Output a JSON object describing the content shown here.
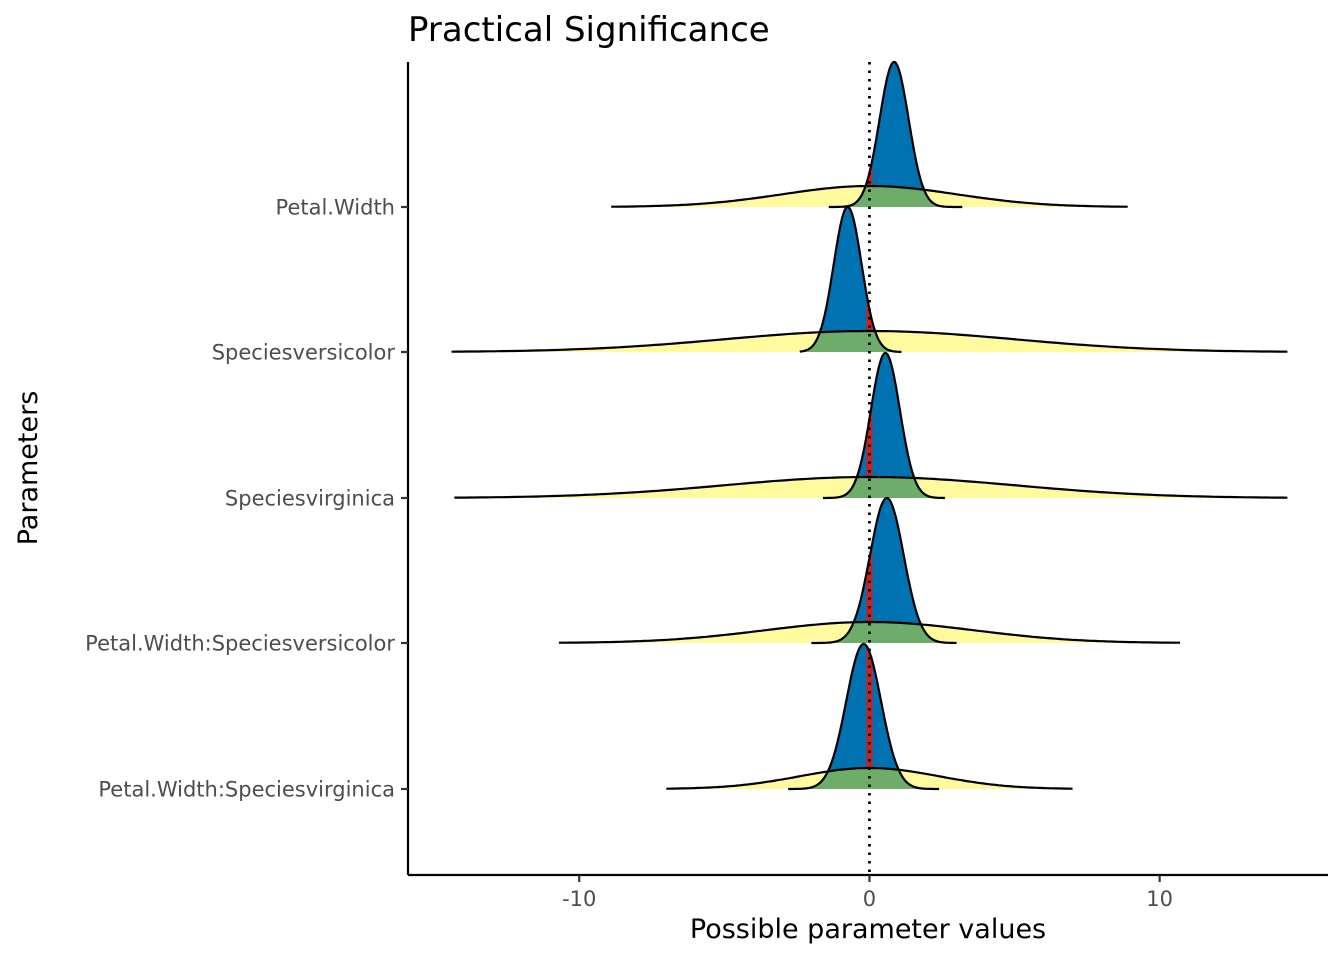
{
  "chart_data": {
    "type": "density-ridges",
    "title": "Practical Significance",
    "xlabel": "Possible parameter values",
    "ylabel": "Parameters",
    "xlim": [
      -15.9,
      15.8
    ],
    "x_ticks": [
      -10,
      0,
      10
    ],
    "x_tick_labels": [
      "-10",
      "0",
      "10"
    ],
    "reference_line_x": 0,
    "rope": [
      -0.1,
      0.1
    ],
    "colors": {
      "posterior_fill": "#0072b2",
      "posterior_rope_fill": "#cd201f",
      "prior_fill": "#fffa92",
      "prior_overlap_fill": "#66aa66",
      "outline": "#000000"
    },
    "parameters": [
      "Petal.Width",
      "Speciesversicolor",
      "Speciesvirginica",
      "Petal.Width:Speciesversicolor",
      "Petal.Width:Speciesvirginica"
    ],
    "series": [
      {
        "parameter": "Petal.Width",
        "posterior": {
          "mean": 0.85,
          "sd": 0.5,
          "range": [
            -1.4,
            3.2
          ]
        },
        "prior": {
          "mean": 0,
          "sd": 3.0,
          "range": [
            -8.9,
            8.9
          ]
        }
      },
      {
        "parameter": "Speciesversicolor",
        "posterior": {
          "mean": -0.75,
          "sd": 0.48,
          "range": [
            -2.4,
            1.1
          ]
        },
        "prior": {
          "mean": 0,
          "sd": 5.0,
          "range": [
            -14.4,
            14.4
          ]
        }
      },
      {
        "parameter": "Speciesvirginica",
        "posterior": {
          "mean": 0.55,
          "sd": 0.5,
          "range": [
            -1.6,
            2.6
          ]
        },
        "prior": {
          "mean": 0,
          "sd": 5.0,
          "range": [
            -14.3,
            14.4
          ]
        }
      },
      {
        "parameter": "Petal.Width:Speciesversicolor",
        "posterior": {
          "mean": 0.6,
          "sd": 0.58,
          "range": [
            -2.0,
            3.0
          ]
        },
        "prior": {
          "mean": 0,
          "sd": 3.6,
          "range": [
            -10.7,
            10.7
          ]
        }
      },
      {
        "parameter": "Petal.Width:Speciesvirginica",
        "posterior": {
          "mean": -0.2,
          "sd": 0.6,
          "range": [
            -2.8,
            2.4
          ]
        },
        "prior": {
          "mean": 0,
          "sd": 2.4,
          "range": [
            -7.0,
            7.0
          ]
        }
      }
    ]
  }
}
